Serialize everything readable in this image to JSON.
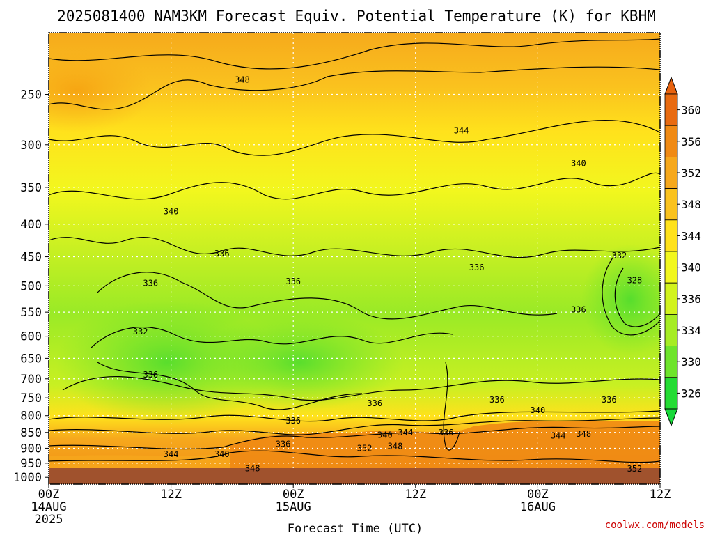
{
  "chart_data": {
    "type": "contour",
    "title": "2025081400 NAM3KM Forecast Equiv. Potential Temperature (K) for KBHM",
    "xlabel": "Forecast Time (UTC)",
    "ylabel": "",
    "x_ticks": [
      {
        "hour": 0,
        "line1": "00Z",
        "line2": "14AUG",
        "line3": "2025"
      },
      {
        "hour": 12,
        "line1": "12Z",
        "line2": "",
        "line3": ""
      },
      {
        "hour": 24,
        "line1": "00Z",
        "line2": "15AUG",
        "line3": ""
      },
      {
        "hour": 36,
        "line1": "12Z",
        "line2": "",
        "line3": ""
      },
      {
        "hour": 48,
        "line1": "00Z",
        "line2": "16AUG",
        "line3": ""
      },
      {
        "hour": 60,
        "line1": "12Z",
        "line2": "",
        "line3": ""
      }
    ],
    "xlim": [
      0,
      60
    ],
    "y_ticks": [
      "250",
      "300",
      "350",
      "400",
      "450",
      "500",
      "550",
      "600",
      "650",
      "700",
      "750",
      "800",
      "850",
      "900",
      "950",
      "1000"
    ],
    "ylim": [
      200,
      1025
    ],
    "y_units": "hPa",
    "y_scale": "log-pressure",
    "grid": true,
    "colorbar": {
      "position": "right",
      "levels": [
        "360",
        "356",
        "352",
        "348",
        "344",
        "340",
        "336",
        "334",
        "330",
        "326"
      ],
      "colors": [
        "#e86a10",
        "#f08a14",
        "#f6a81c",
        "#fac21e",
        "#ffe21c",
        "#f2f71e",
        "#d2f31e",
        "#a6ec24",
        "#6ee42c",
        "#24dc34"
      ],
      "over_color": "#e8620e",
      "under_color": "#18d83a"
    },
    "contour_labels": [
      {
        "text": "348",
        "hour": 19,
        "p": 237
      },
      {
        "text": "344",
        "hour": 40.5,
        "p": 285
      },
      {
        "text": "340",
        "hour": 52,
        "p": 321
      },
      {
        "text": "340",
        "hour": 12,
        "p": 382
      },
      {
        "text": "336",
        "hour": 17,
        "p": 445
      },
      {
        "text": "336",
        "hour": 10,
        "p": 495
      },
      {
        "text": "336",
        "hour": 24,
        "p": 492
      },
      {
        "text": "336",
        "hour": 42,
        "p": 468
      },
      {
        "text": "332",
        "hour": 56,
        "p": 448
      },
      {
        "text": "328",
        "hour": 57.5,
        "p": 490
      },
      {
        "text": "336",
        "hour": 52,
        "p": 545
      },
      {
        "text": "332",
        "hour": 9,
        "p": 590
      },
      {
        "text": "336",
        "hour": 10,
        "p": 690
      },
      {
        "text": "336",
        "hour": 32,
        "p": 765
      },
      {
        "text": "336",
        "hour": 44,
        "p": 755
      },
      {
        "text": "340",
        "hour": 48,
        "p": 785
      },
      {
        "text": "336",
        "hour": 55,
        "p": 755
      },
      {
        "text": "336",
        "hour": 24,
        "p": 815
      },
      {
        "text": "336",
        "hour": 23,
        "p": 887
      },
      {
        "text": "340",
        "hour": 33,
        "p": 858
      },
      {
        "text": "344",
        "hour": 35,
        "p": 850
      },
      {
        "text": "348",
        "hour": 34,
        "p": 893
      },
      {
        "text": "352",
        "hour": 31,
        "p": 900
      },
      {
        "text": "336",
        "hour": 39,
        "p": 850
      },
      {
        "text": "344",
        "hour": 50,
        "p": 860
      },
      {
        "text": "348",
        "hour": 52.5,
        "p": 855
      },
      {
        "text": "344",
        "hour": 12,
        "p": 920
      },
      {
        "text": "340",
        "hour": 17,
        "p": 920
      },
      {
        "text": "348",
        "hour": 20,
        "p": 968
      },
      {
        "text": "352",
        "hour": 57.5,
        "p": 970
      }
    ]
  },
  "footer": {
    "credit": "coolwx.com/models"
  }
}
